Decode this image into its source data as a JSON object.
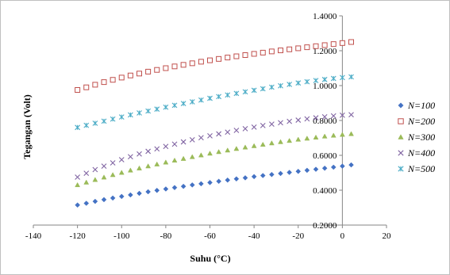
{
  "chart_data": {
    "type": "scatter",
    "xlabel": "Suhu (°C)",
    "ylabel": "Tegangan (Volt)",
    "xlim": [
      -140,
      20
    ],
    "ylim": [
      0.2,
      1.4
    ],
    "x_ticks": [
      -140,
      -120,
      -100,
      -80,
      -60,
      -40,
      -20,
      0,
      20
    ],
    "y_ticks": [
      0.2,
      0.4,
      0.6,
      0.8,
      1.0,
      1.2,
      1.4
    ],
    "x_tick_labels": [
      "-140",
      "-120",
      "-100",
      "-80",
      "-60",
      "-40",
      "-20",
      "0",
      "20"
    ],
    "y_tick_labels": [
      "0.2000",
      "0.4000",
      "0.6000",
      "0.8000",
      "1.0000",
      "1.2000",
      "1.4000"
    ],
    "y_axis_position": "x=0",
    "grid": false,
    "legend_position": "right",
    "x": [
      -120,
      -116,
      -112,
      -108,
      -104,
      -100,
      -96,
      -92,
      -88,
      -84,
      -80,
      -76,
      -72,
      -68,
      -64,
      -60,
      -56,
      -52,
      -48,
      -44,
      -40,
      -36,
      -32,
      -28,
      -24,
      -20,
      -16,
      -12,
      -8,
      -4,
      0,
      4
    ],
    "series": [
      {
        "name": "N=100",
        "marker": "diamond",
        "color": "#4472c4",
        "values": [
          0.315,
          0.325,
          0.336,
          0.346,
          0.355,
          0.364,
          0.373,
          0.382,
          0.391,
          0.399,
          0.407,
          0.415,
          0.422,
          0.43,
          0.437,
          0.444,
          0.451,
          0.458,
          0.465,
          0.471,
          0.478,
          0.484,
          0.49,
          0.496,
          0.502,
          0.508,
          0.514,
          0.52,
          0.526,
          0.532,
          0.538,
          0.545
        ]
      },
      {
        "name": "N=200",
        "marker": "square",
        "color": "#c0504d",
        "values": [
          0.975,
          0.99,
          1.005,
          1.02,
          1.033,
          1.046,
          1.058,
          1.069,
          1.08,
          1.09,
          1.1,
          1.11,
          1.119,
          1.128,
          1.137,
          1.145,
          1.153,
          1.161,
          1.168,
          1.175,
          1.182,
          1.189,
          1.196,
          1.202,
          1.208,
          1.214,
          1.22,
          1.226,
          1.232,
          1.238,
          1.244,
          1.25
        ]
      },
      {
        "name": "N=300",
        "marker": "triangle",
        "color": "#9bbb59",
        "values": [
          0.43,
          0.445,
          0.46,
          0.474,
          0.488,
          0.501,
          0.514,
          0.526,
          0.538,
          0.549,
          0.56,
          0.571,
          0.581,
          0.591,
          0.601,
          0.611,
          0.62,
          0.629,
          0.638,
          0.646,
          0.654,
          0.662,
          0.67,
          0.677,
          0.684,
          0.691,
          0.697,
          0.703,
          0.709,
          0.714,
          0.719,
          0.723
        ]
      },
      {
        "name": "N=400",
        "marker": "x",
        "color": "#8064a2",
        "values": [
          0.475,
          0.497,
          0.518,
          0.538,
          0.557,
          0.575,
          0.592,
          0.608,
          0.623,
          0.637,
          0.651,
          0.664,
          0.677,
          0.689,
          0.701,
          0.712,
          0.723,
          0.733,
          0.743,
          0.753,
          0.762,
          0.771,
          0.779,
          0.787,
          0.795,
          0.802,
          0.809,
          0.815,
          0.821,
          0.826,
          0.83,
          0.833
        ]
      },
      {
        "name": "N=500",
        "marker": "star",
        "color": "#4bacc6",
        "values": [
          0.76,
          0.772,
          0.784,
          0.796,
          0.808,
          0.82,
          0.832,
          0.843,
          0.854,
          0.865,
          0.876,
          0.887,
          0.897,
          0.907,
          0.917,
          0.927,
          0.937,
          0.946,
          0.955,
          0.964,
          0.973,
          0.982,
          0.991,
          0.999,
          1.007,
          1.015,
          1.022,
          1.029,
          1.035,
          1.041,
          1.046,
          1.05
        ]
      }
    ]
  }
}
